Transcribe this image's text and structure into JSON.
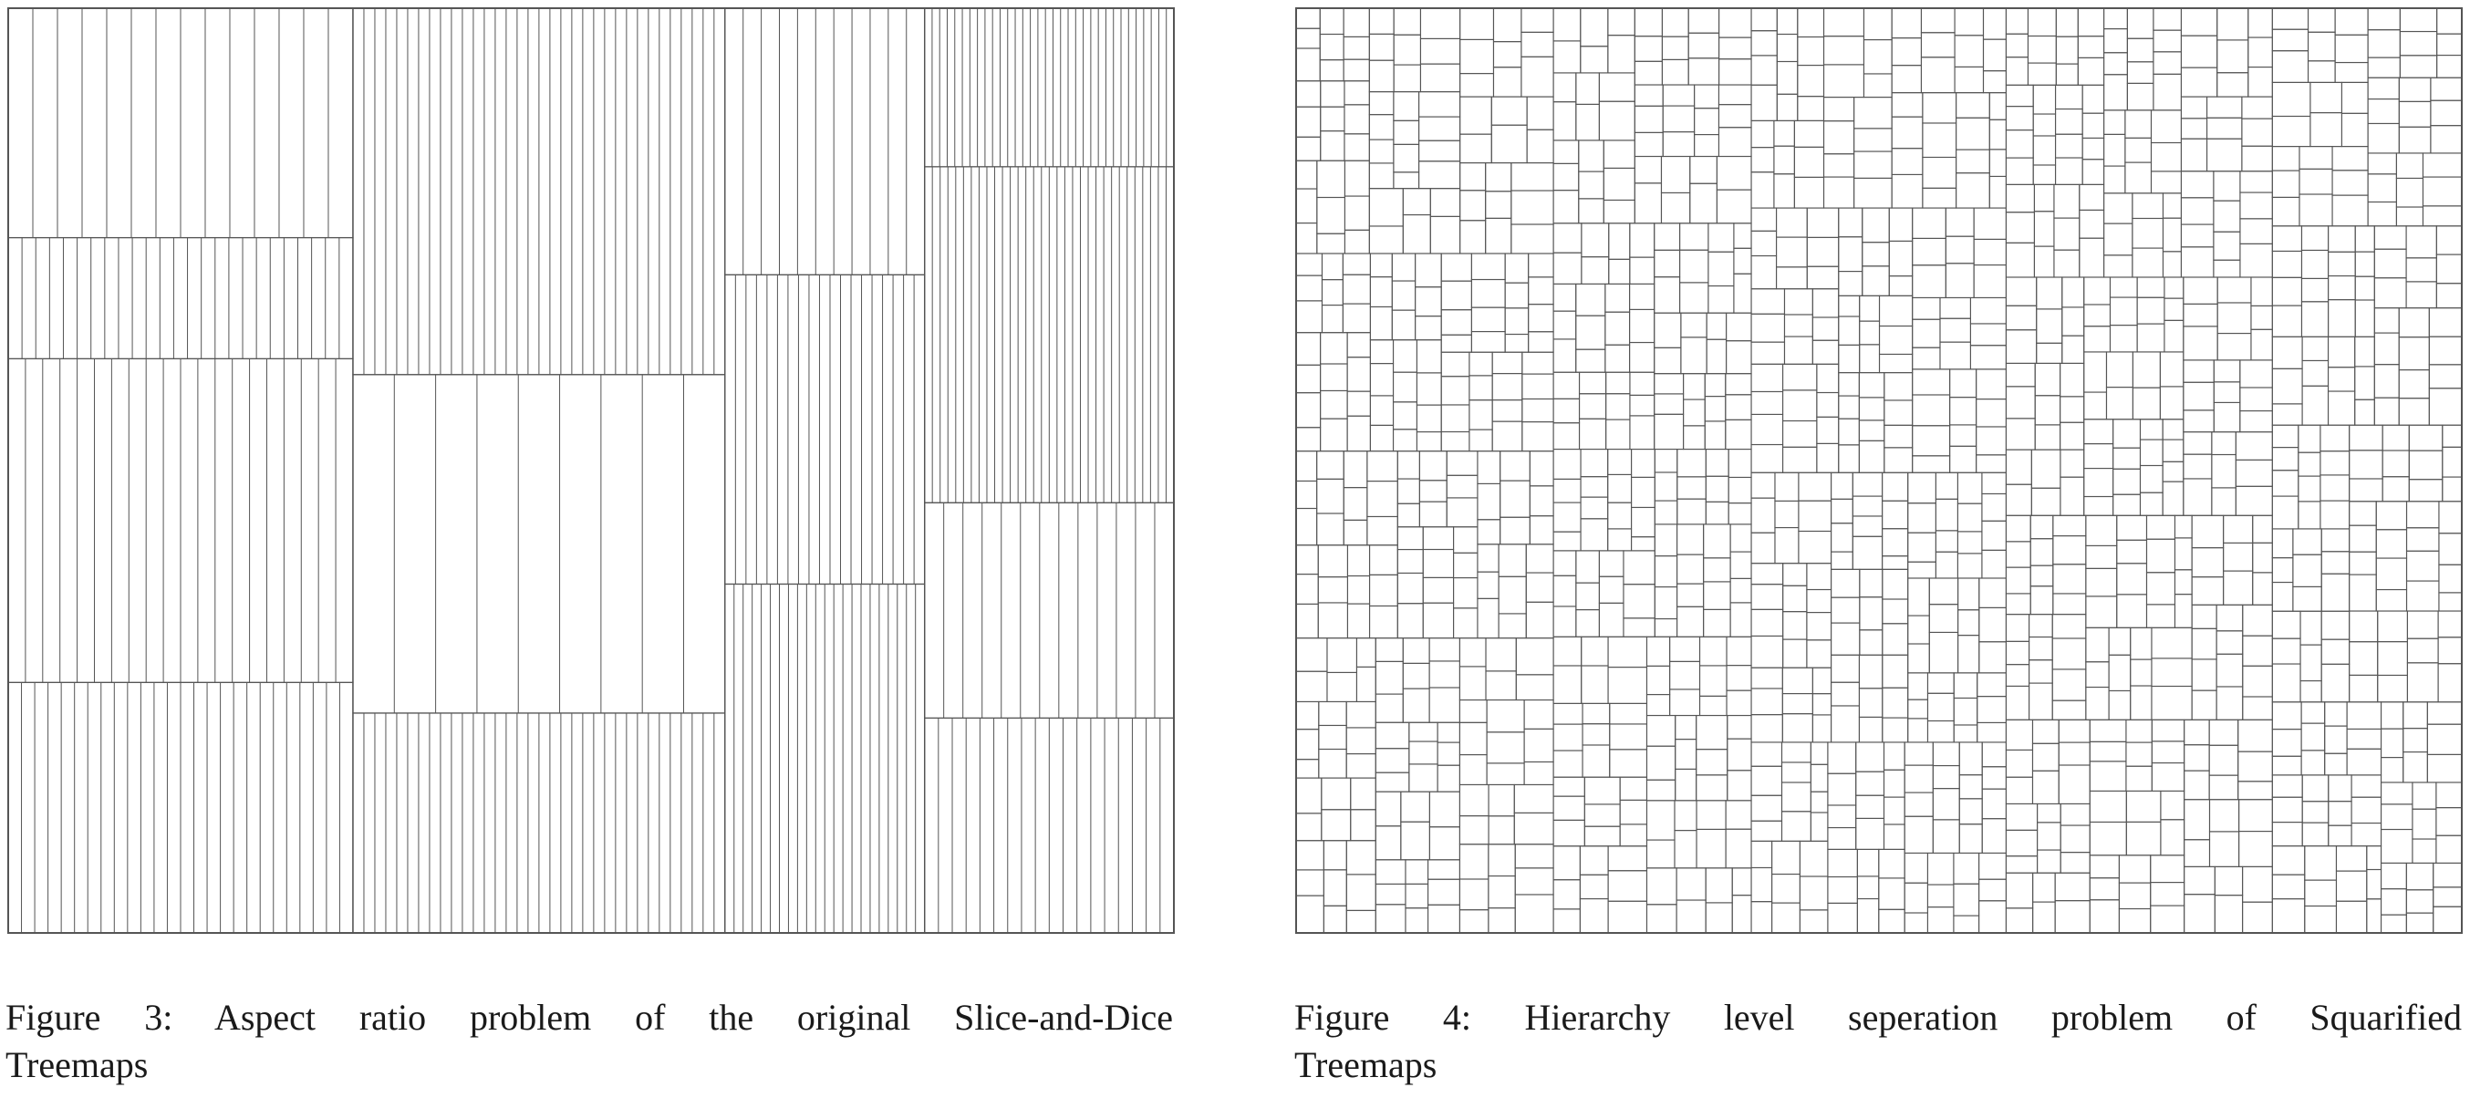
{
  "figures": [
    {
      "id": "figure-3",
      "kind": "slice-and-dice treemap",
      "caption_line1": "Figure 3: Aspect ratio problem of the original Slice-and-Dice",
      "caption_line2": "Treemaps"
    },
    {
      "id": "figure-4",
      "kind": "squarified treemap",
      "caption_line1": "Figure 4: Hierarchy level seperation problem of Squarified",
      "caption_line2": "Treemaps"
    }
  ],
  "colors": {
    "line": "#555555",
    "frame": "#333333",
    "background": "#ffffff"
  }
}
